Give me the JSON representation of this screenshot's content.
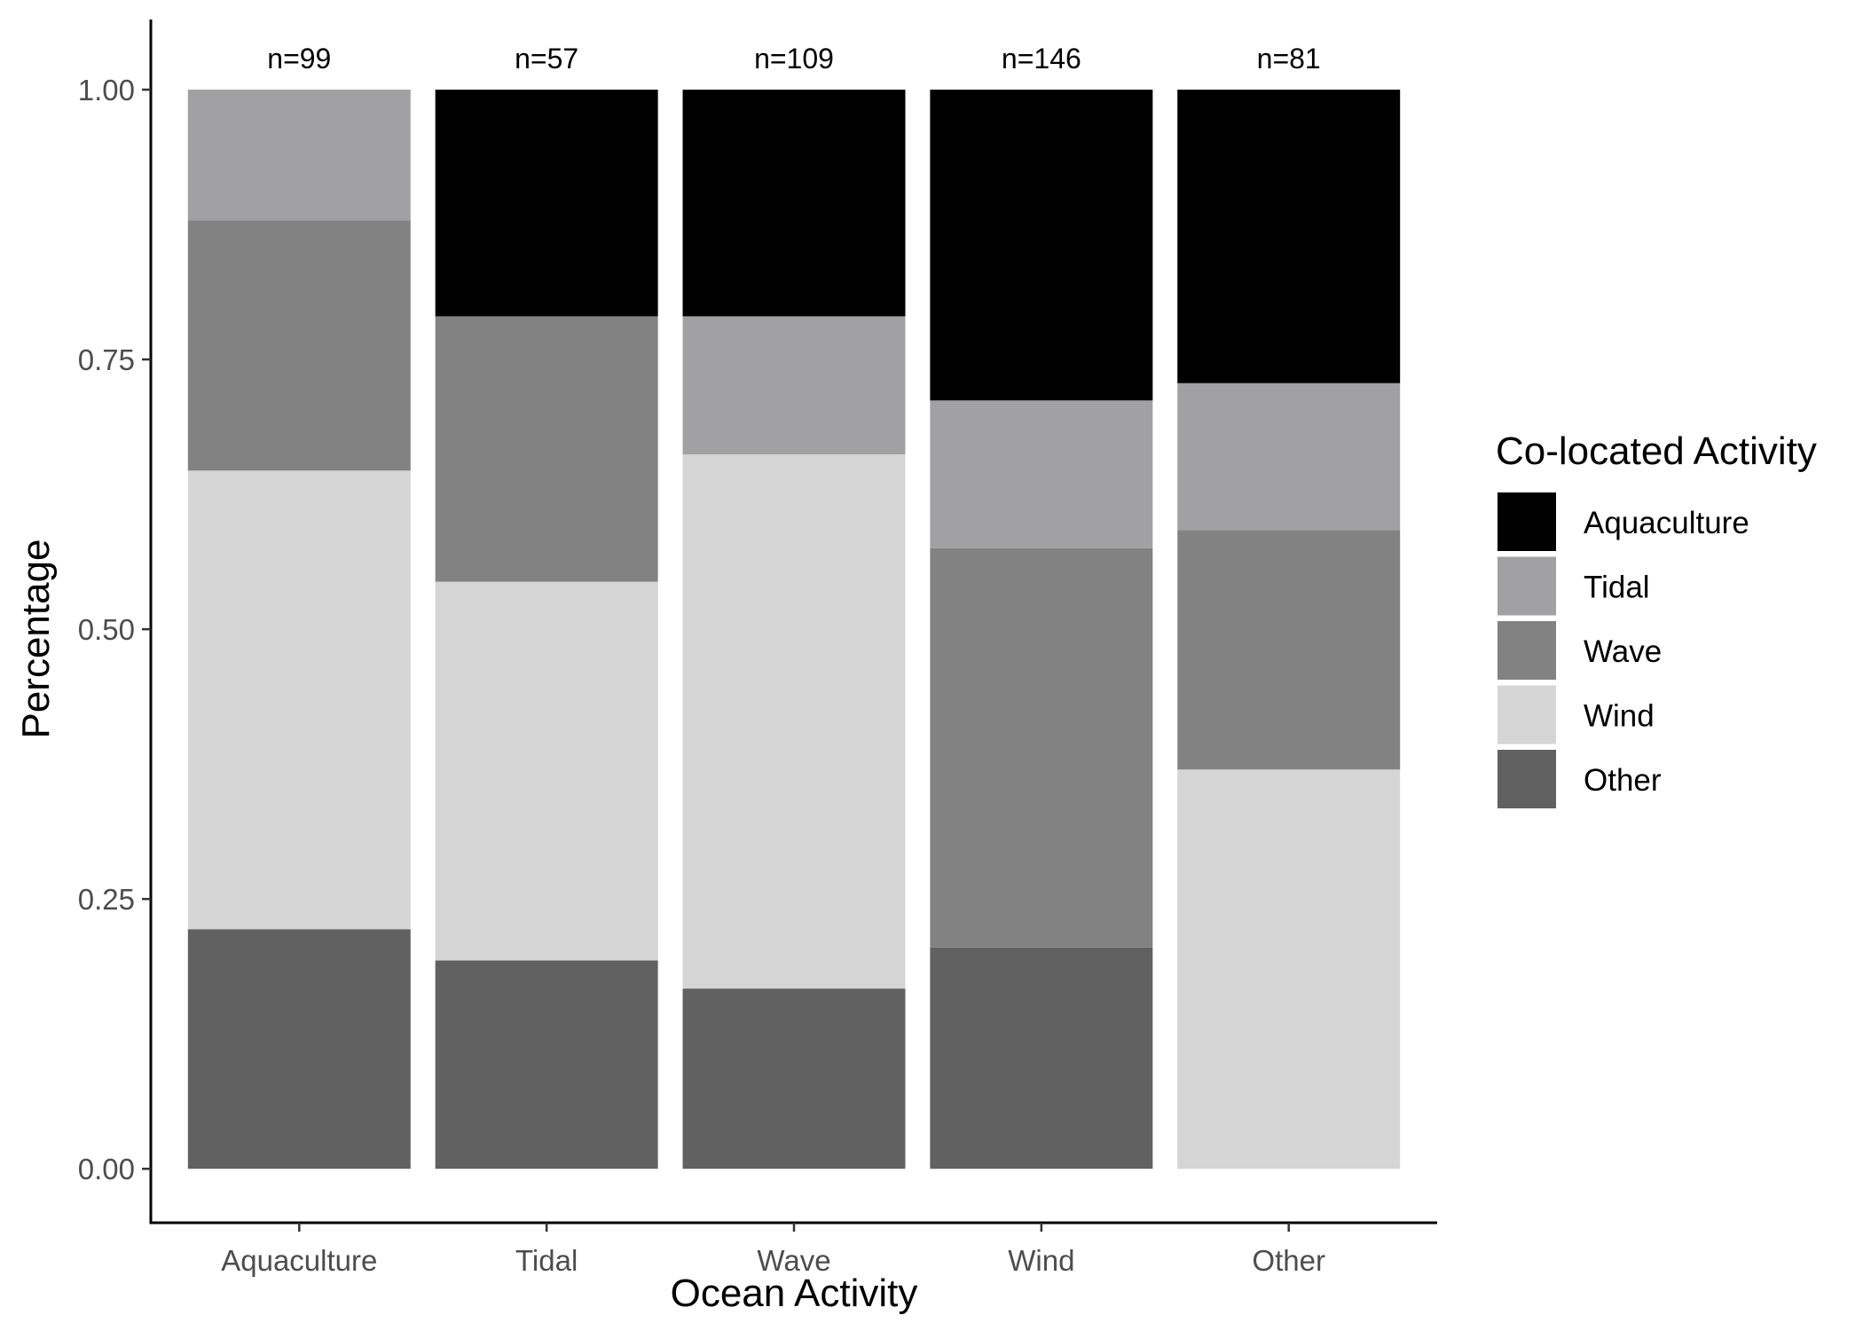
{
  "chart_data": {
    "type": "bar",
    "stacked": true,
    "categories": [
      "Aquaculture",
      "Tidal",
      "Wave",
      "Wind",
      "Other"
    ],
    "counts": [
      "n=99",
      "n=57",
      "n=109",
      "n=146",
      "n=81"
    ],
    "xlabel": "Ocean Activity",
    "ylabel": "Percentage",
    "ylim": [
      -0.05,
      1.065
    ],
    "yticks": [
      0.0,
      0.25,
      0.5,
      0.75,
      1.0
    ],
    "ytick_labels": [
      "0.00",
      "0.25",
      "0.50",
      "0.75",
      "1.00"
    ],
    "grid": false,
    "legend": {
      "title": "Co-located Activity",
      "position": "right"
    },
    "stack_order": [
      "Other",
      "Wind",
      "Wave",
      "Tidal",
      "Aquaculture"
    ],
    "series": [
      {
        "name": "Aquaculture",
        "color": "#000000",
        "values": [
          0.0,
          0.21,
          0.21,
          0.288,
          0.272
        ]
      },
      {
        "name": "Tidal",
        "color": "#a1a1a4",
        "values": [
          0.121,
          0.0,
          0.128,
          0.137,
          0.136
        ]
      },
      {
        "name": "Wave",
        "color": "#828282",
        "values": [
          0.232,
          0.246,
          0.0,
          0.37,
          0.222
        ]
      },
      {
        "name": "Wind",
        "color": "#d5d5d5",
        "values": [
          0.425,
          0.351,
          0.495,
          0.0,
          0.37
        ]
      },
      {
        "name": "Other",
        "color": "#616161",
        "values": [
          0.222,
          0.193,
          0.167,
          0.205,
          0.0
        ]
      }
    ]
  }
}
